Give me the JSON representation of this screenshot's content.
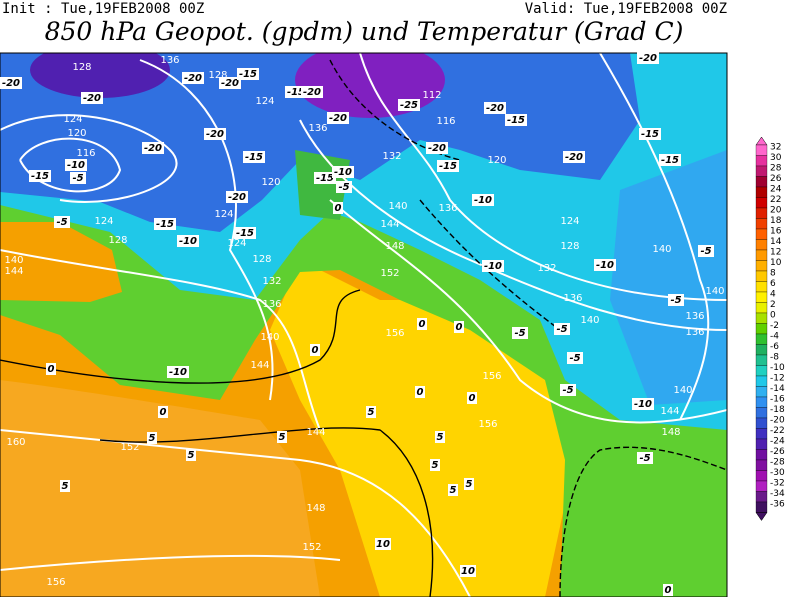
{
  "header": {
    "init": "Init : Tue,19FEB2008 00Z",
    "valid": "Valid: Tue,19FEB2008 00Z",
    "title": "850 hPa Geopot. (gpdm) und Temperatur (Grad C)"
  },
  "colorbar": {
    "labels": [
      32,
      30,
      28,
      26,
      24,
      22,
      20,
      18,
      16,
      14,
      12,
      10,
      8,
      6,
      4,
      2,
      0,
      -2,
      -4,
      -6,
      -8,
      -10,
      -12,
      -14,
      -16,
      -18,
      -20,
      -22,
      -24,
      -26,
      -28,
      -30,
      -32,
      -34,
      -36
    ],
    "colors": [
      "#ff66cc",
      "#e6309e",
      "#c01870",
      "#a00030",
      "#b00000",
      "#d00000",
      "#e02000",
      "#f04000",
      "#ff6000",
      "#ff8000",
      "#ff9a00",
      "#ffb000",
      "#ffc800",
      "#ffe000",
      "#fff000",
      "#e8f000",
      "#a8e000",
      "#60d000",
      "#30c030",
      "#20b060",
      "#20c090",
      "#20d0c0",
      "#20c8e8",
      "#30b0f0",
      "#3090f0",
      "#3070e0",
      "#3050d0",
      "#4030c0",
      "#5020b0",
      "#7010a0",
      "#8010a0",
      "#a010b0",
      "#b020c0",
      "#6a1a8a",
      "#401060"
    ]
  },
  "map": {
    "geopotential_labels": [
      128,
      136,
      128,
      124,
      120,
      124,
      116,
      112,
      116,
      136,
      132,
      120,
      120,
      124,
      124,
      140,
      144,
      148,
      152,
      128,
      132,
      136,
      140,
      144,
      124,
      128,
      132,
      136,
      140,
      140,
      140,
      136,
      136,
      140,
      144,
      148,
      156,
      156,
      156,
      144,
      148,
      152,
      152,
      160,
      156,
      140,
      144,
      124,
      128,
      136
    ],
    "temperature_labels": [
      -20,
      -20,
      -20,
      -20,
      -15,
      -15,
      -20,
      -20,
      -20,
      -20,
      -15,
      -10,
      -5,
      -15,
      -15,
      -10,
      -5,
      -20,
      -15,
      -15,
      -10,
      -5,
      -25,
      -20,
      -15,
      -10,
      -20,
      -15,
      -20,
      -15,
      -15,
      -20,
      -10,
      -10,
      -5,
      -5,
      -5,
      -5,
      -5,
      -10,
      -5,
      0,
      -10,
      0,
      0,
      5,
      5,
      5,
      5,
      5,
      5,
      5,
      5,
      10,
      10,
      0,
      0,
      0,
      0,
      0,
      5,
      0,
      -5
    ]
  }
}
